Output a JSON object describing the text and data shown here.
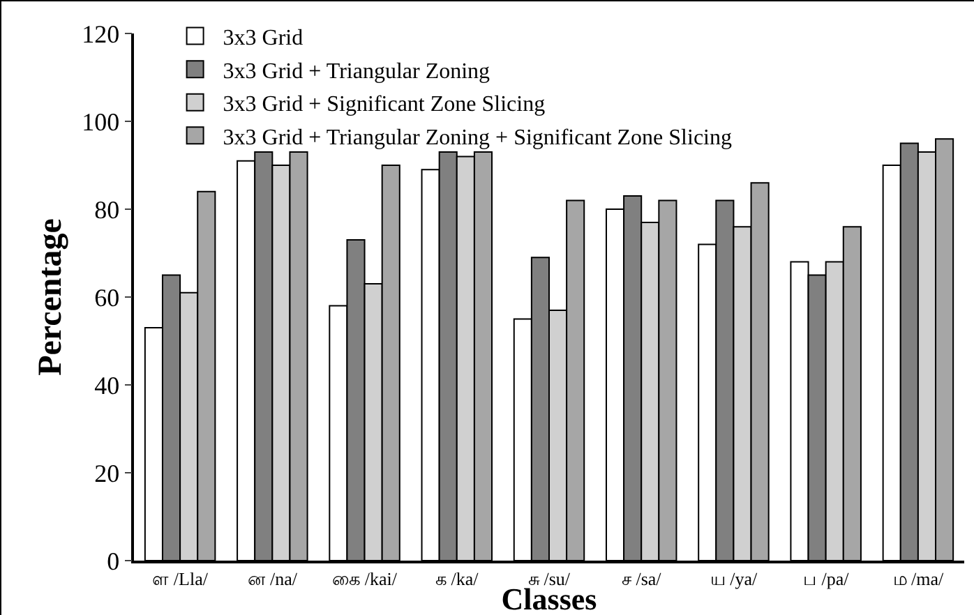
{
  "chart_data": {
    "type": "bar",
    "xlabel": "Classes",
    "ylabel": "Percentage",
    "categories": [
      "ள /Lla/",
      "ன /na/",
      "கை /kai/",
      "க /ka/",
      "சு /su/",
      "ச /sa/",
      "ய /ya/",
      "ப /pa/",
      "ம /ma/"
    ],
    "series": [
      {
        "name": "3x3 Grid",
        "color": "#ffffff",
        "values": [
          53,
          91,
          58,
          89,
          55,
          80,
          72,
          68,
          90
        ]
      },
      {
        "name": "3x3 Grid + Triangular Zoning",
        "color": "#808080",
        "values": [
          65,
          93,
          73,
          93,
          69,
          83,
          82,
          65,
          95
        ]
      },
      {
        "name": "3x3 Grid + Significant Zone Slicing",
        "color": "#d0d0d0",
        "values": [
          61,
          90,
          63,
          92,
          57,
          77,
          76,
          68,
          93
        ]
      },
      {
        "name": "3x3 Grid + Triangular Zoning + Significant Zone Slicing",
        "color": "#a6a6a6",
        "values": [
          84,
          93,
          90,
          93,
          82,
          82,
          86,
          76,
          96
        ]
      }
    ],
    "ylim": [
      0,
      120
    ],
    "yticks": [
      0,
      20,
      40,
      60,
      80,
      100,
      120
    ],
    "grid": false,
    "legend": "top left"
  }
}
